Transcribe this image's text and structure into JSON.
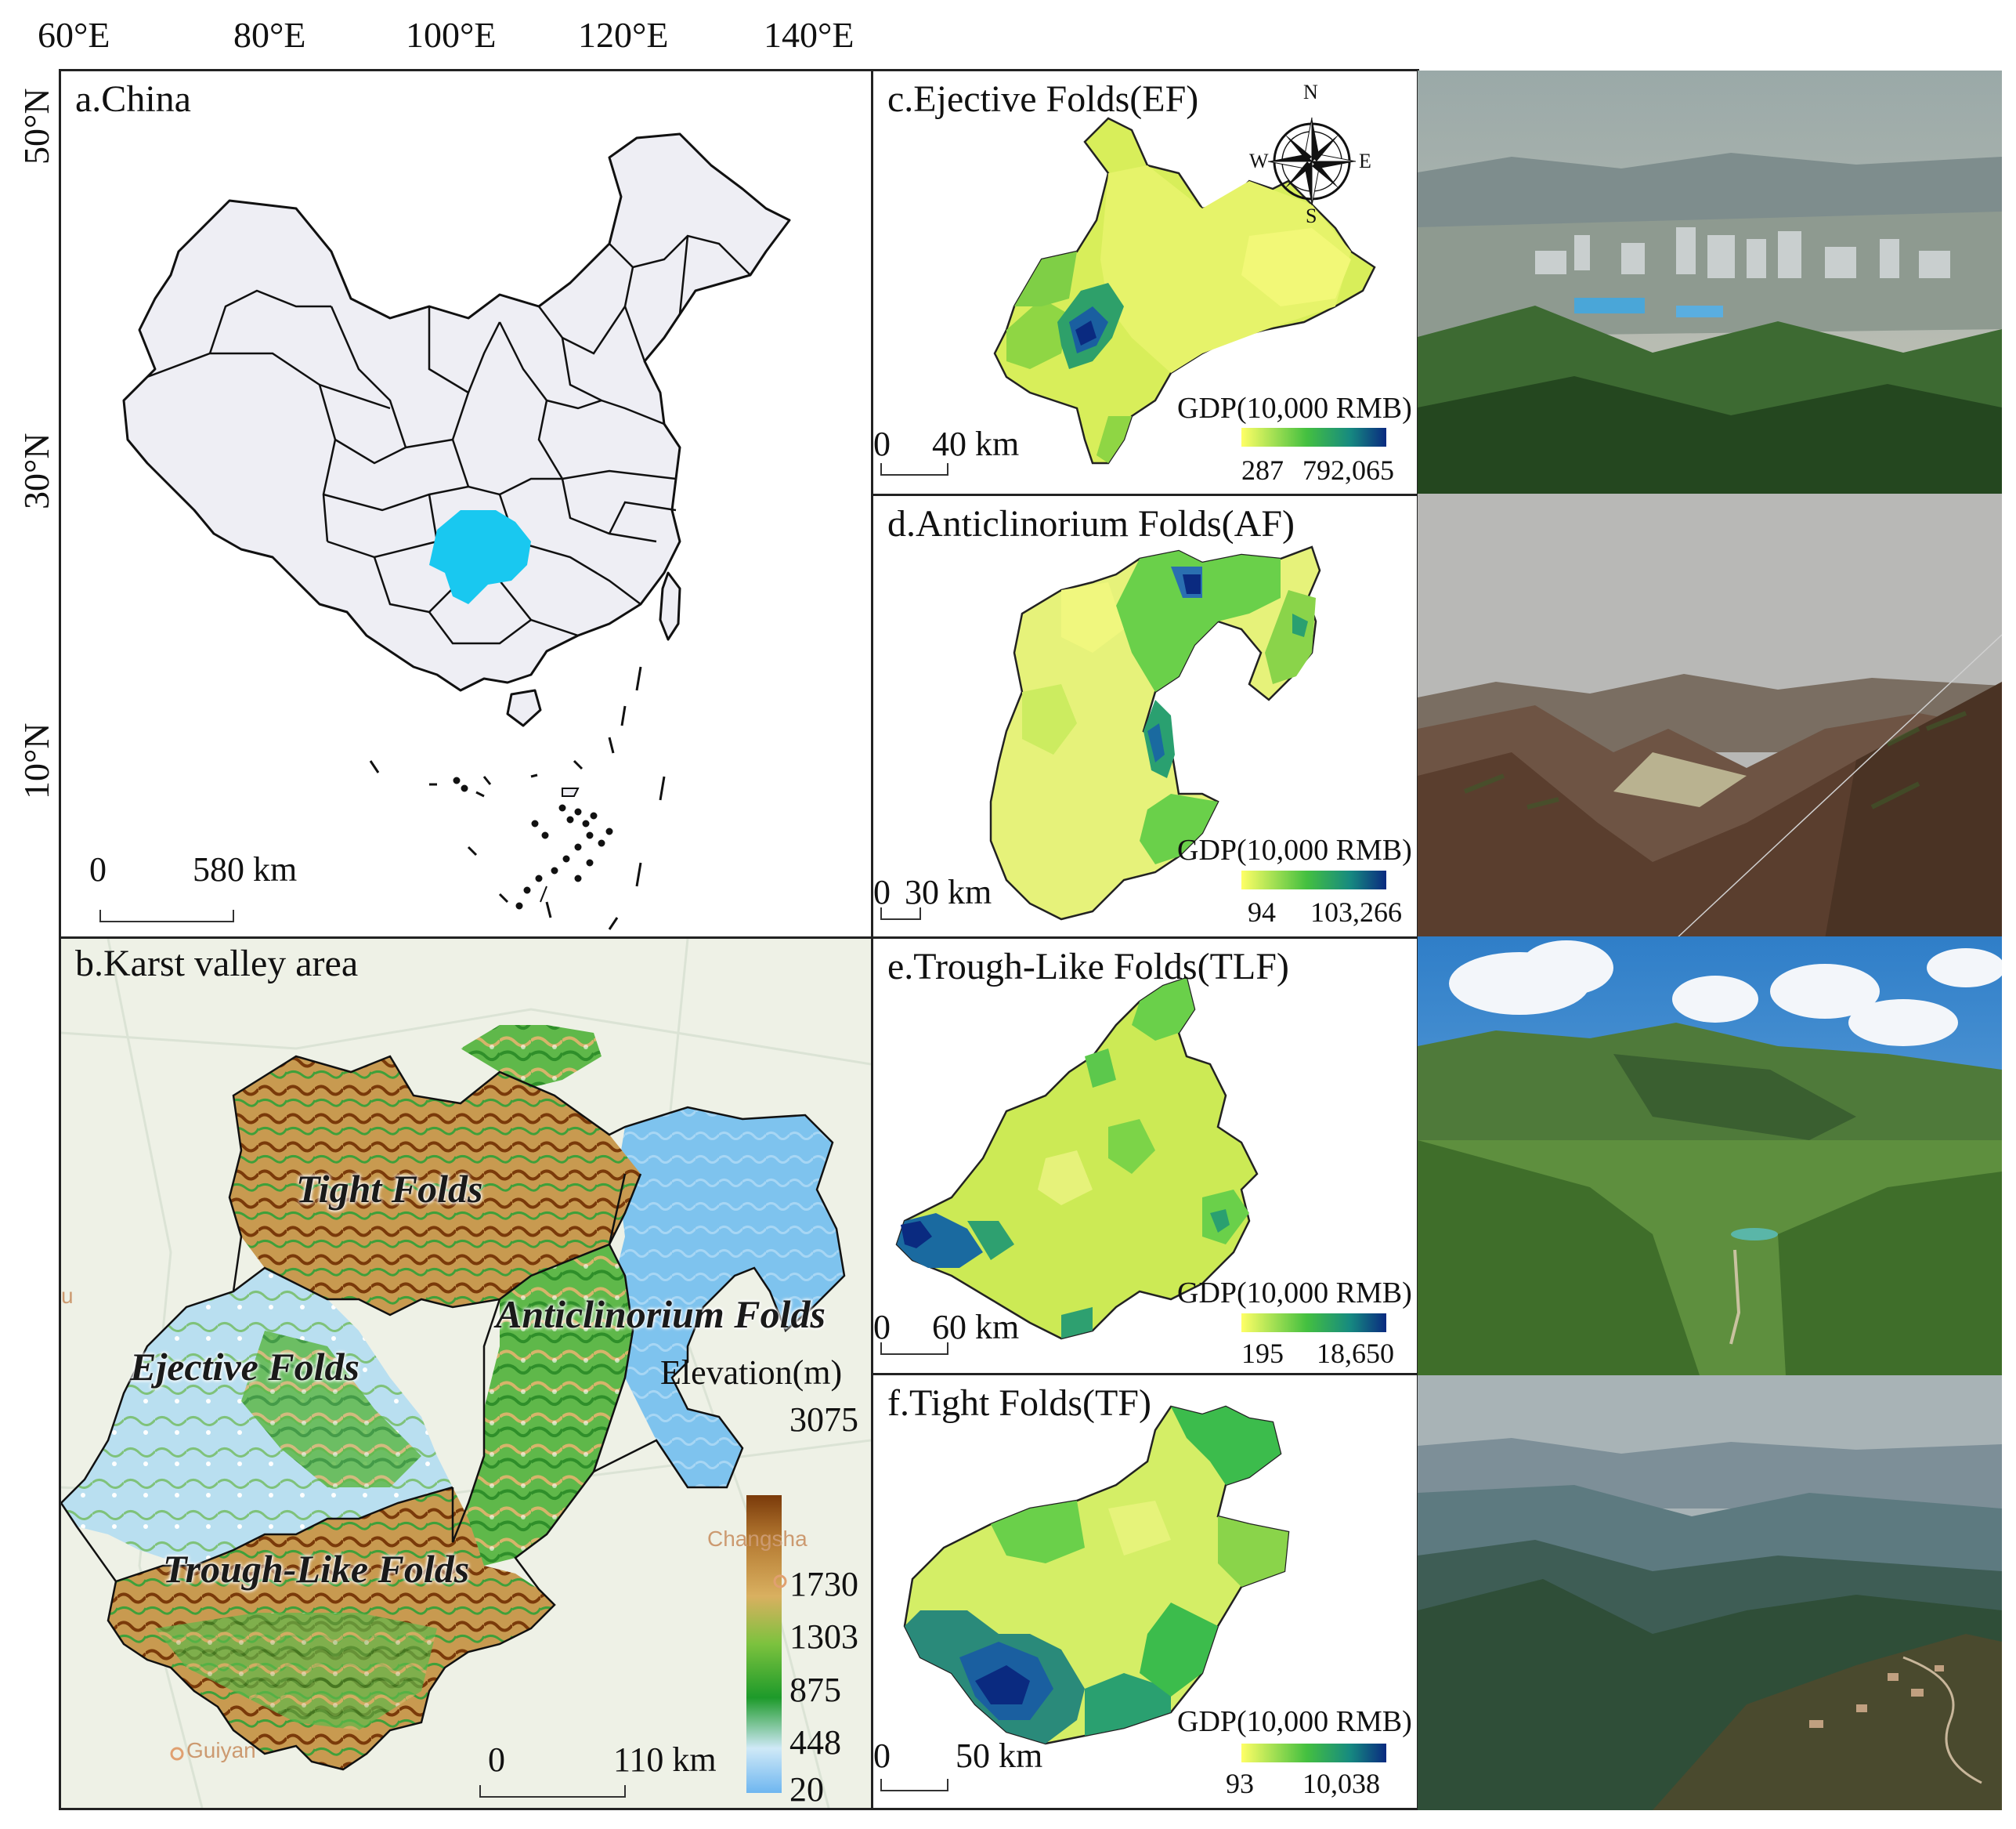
{
  "lon_labels": [
    "60°E",
    "80°E",
    "100°E",
    "120°E",
    "140°E"
  ],
  "lat_labels": [
    "50°N",
    "30°N",
    "10°N"
  ],
  "panel_a": {
    "title": "a.China",
    "scale": {
      "zero": "0",
      "label": "580 km"
    }
  },
  "panel_b": {
    "title": "b.Karst valley area",
    "regions": [
      "Tight Folds",
      "Anticlinorium Folds",
      "Ejective Folds",
      "Trough-Like Folds"
    ],
    "legend_title": "Elevation(m)",
    "legend_values": [
      "3075",
      "1730",
      "1303",
      "875",
      "448",
      "20"
    ],
    "cities": [
      "Changsha",
      "Guiyan",
      "u"
    ],
    "scale": {
      "zero": "0",
      "label": "110 km"
    }
  },
  "panel_c": {
    "title": "c.Ejective Folds(EF)",
    "compass": {
      "n": "N",
      "s": "S",
      "e": "E",
      "w": "W"
    },
    "legend_title": "GDP(10,000 RMB)",
    "min": "287",
    "max": "792,065",
    "scale": {
      "zero": "0",
      "label": "40 km"
    }
  },
  "panel_d": {
    "title": "d.Anticlinorium Folds(AF)",
    "legend_title": "GDP(10,000 RMB)",
    "min": "94",
    "max": "103,266",
    "scale": {
      "zero": "0",
      "label": "30 km"
    }
  },
  "panel_e": {
    "title": "e.Trough-Like Folds(TLF)",
    "legend_title": "GDP(10,000 RMB)",
    "min": "195",
    "max": "18,650",
    "scale": {
      "zero": "0",
      "label": "60 km"
    }
  },
  "panel_f": {
    "title": "f.Tight Folds(TF)",
    "legend_title": "GDP(10,000 RMB)",
    "min": "93",
    "max": "10,038",
    "scale": {
      "zero": "0",
      "label": "50 km"
    }
  },
  "colors": {
    "highlight": "#19c8f0",
    "china_fill": "#eeeef4",
    "gdp_low": "#ffff66",
    "gdp_mid": "#44c040",
    "gdp_high": "#0a2a80"
  }
}
